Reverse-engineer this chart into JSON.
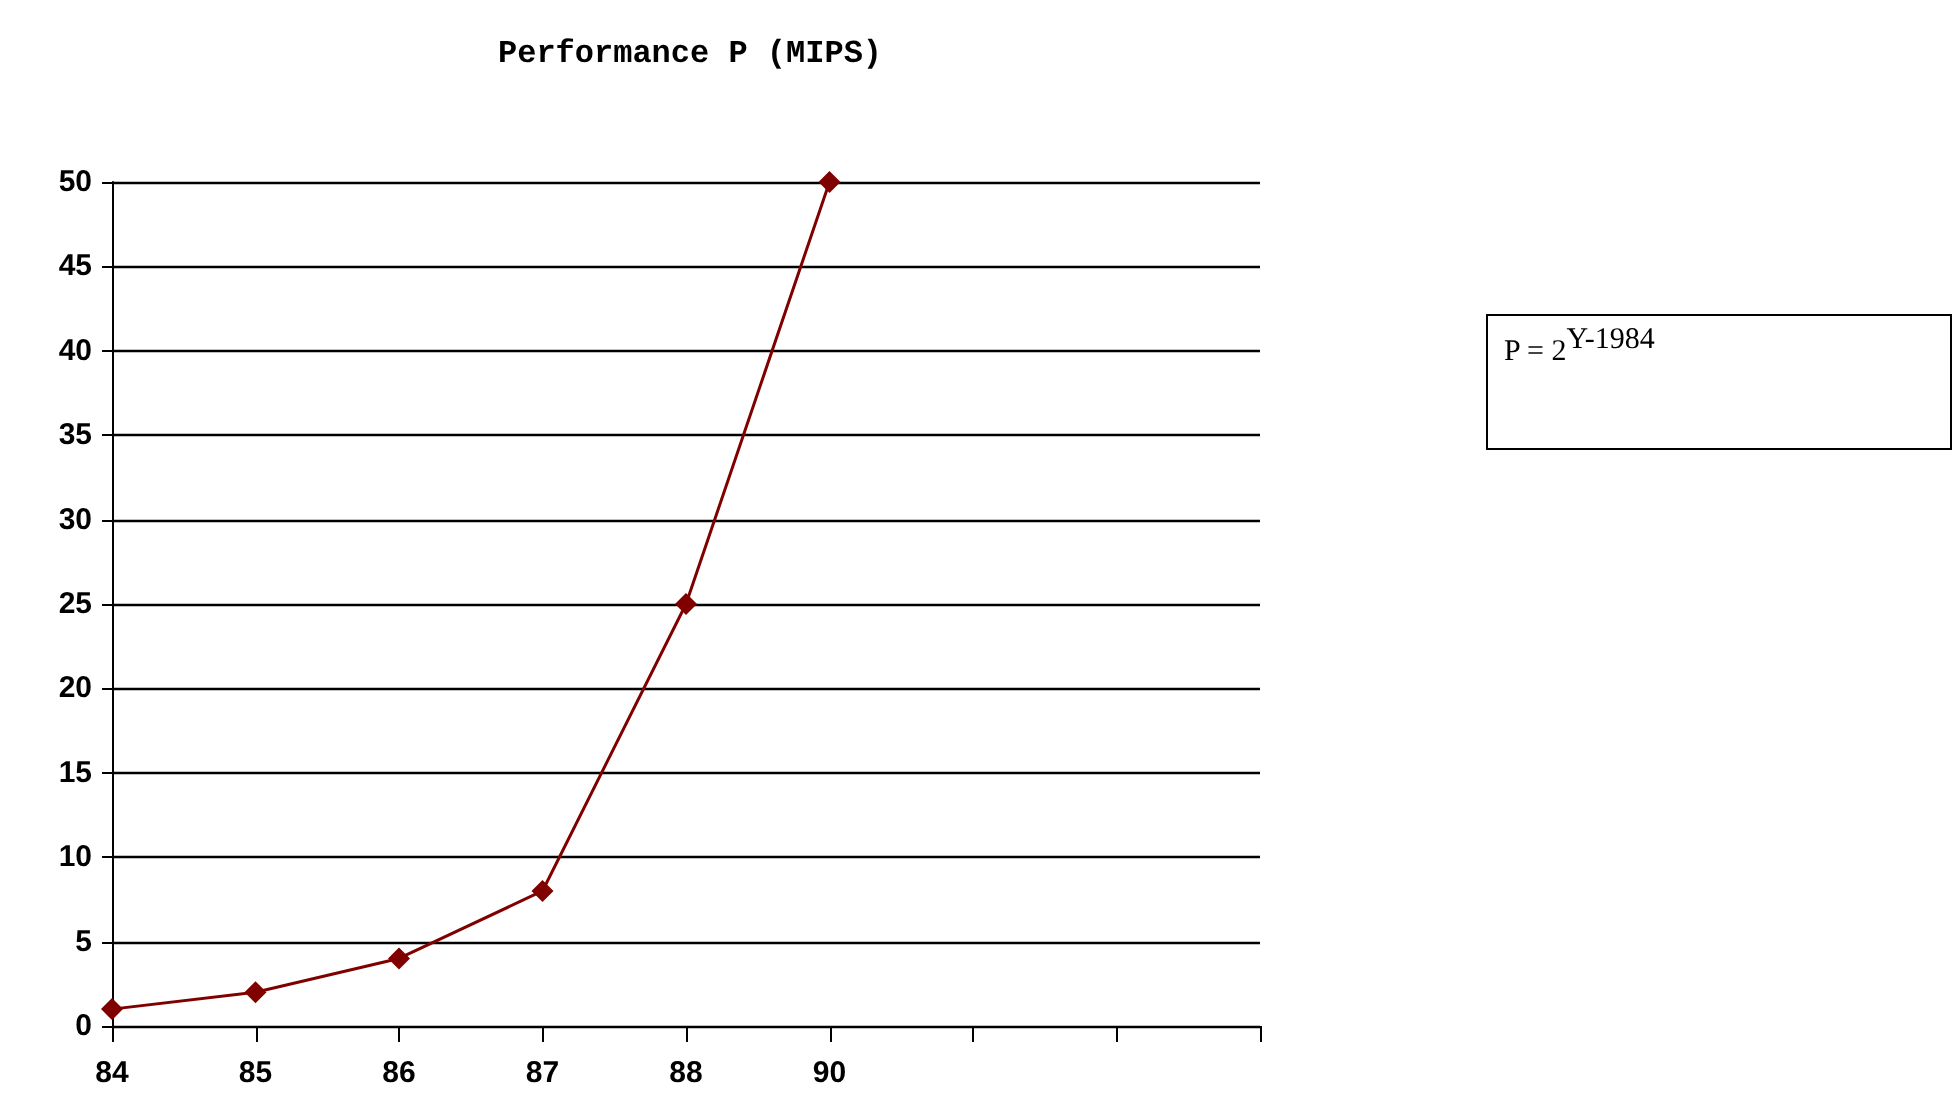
{
  "chart_data": {
    "type": "line",
    "title": "Performance P (MIPS)",
    "categories": [
      "84",
      "85",
      "86",
      "87",
      "88",
      "90",
      null,
      null,
      null
    ],
    "series": [
      {
        "color": "#800000",
        "values": [
          1,
          2,
          4,
          8,
          25,
          50,
          null,
          null,
          null
        ]
      }
    ],
    "ylim": [
      0,
      50
    ],
    "yticks": [
      0,
      5,
      10,
      15,
      20,
      25,
      30,
      35,
      40,
      45,
      50
    ],
    "grid": "y",
    "marker": "diamond",
    "line_style": "solid",
    "annotations": [
      "P = 2$^{Y-1984}$"
    ]
  }
}
